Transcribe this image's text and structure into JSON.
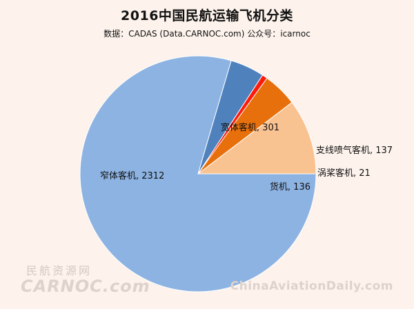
{
  "title": "2016中国民航运输飞机分类",
  "subtitle": "数据：CADAS (Data.CARNOC.com) 公众号：icarnoc",
  "watermarks": {
    "left_cn": "民航资源网",
    "left_en": "CARNOC.com",
    "right": "ChinaAviationDaily.com"
  },
  "chart_data": {
    "type": "pie",
    "title": "2016中国民航运输飞机分类",
    "subtitle": "数据：CADAS (Data.CARNOC.com) 公众号：icarnoc",
    "slices": [
      {
        "label": "宽体客机",
        "value": 301,
        "color": "#f9c291",
        "display": "宽体客机, 301"
      },
      {
        "label": "支线喷气客机",
        "value": 137,
        "color": "#e8700c",
        "display": "支线喷气客机, 137"
      },
      {
        "label": "涡桨客机",
        "value": 21,
        "color": "#ff1a0a",
        "display": "涡桨客机, 21"
      },
      {
        "label": "货机",
        "value": 136,
        "color": "#4f81bd",
        "display": "货机, 136"
      },
      {
        "label": "窄体客机",
        "value": 2312,
        "color": "#8db3e2",
        "display": "窄体客机, 2312"
      }
    ],
    "legend": "none"
  }
}
